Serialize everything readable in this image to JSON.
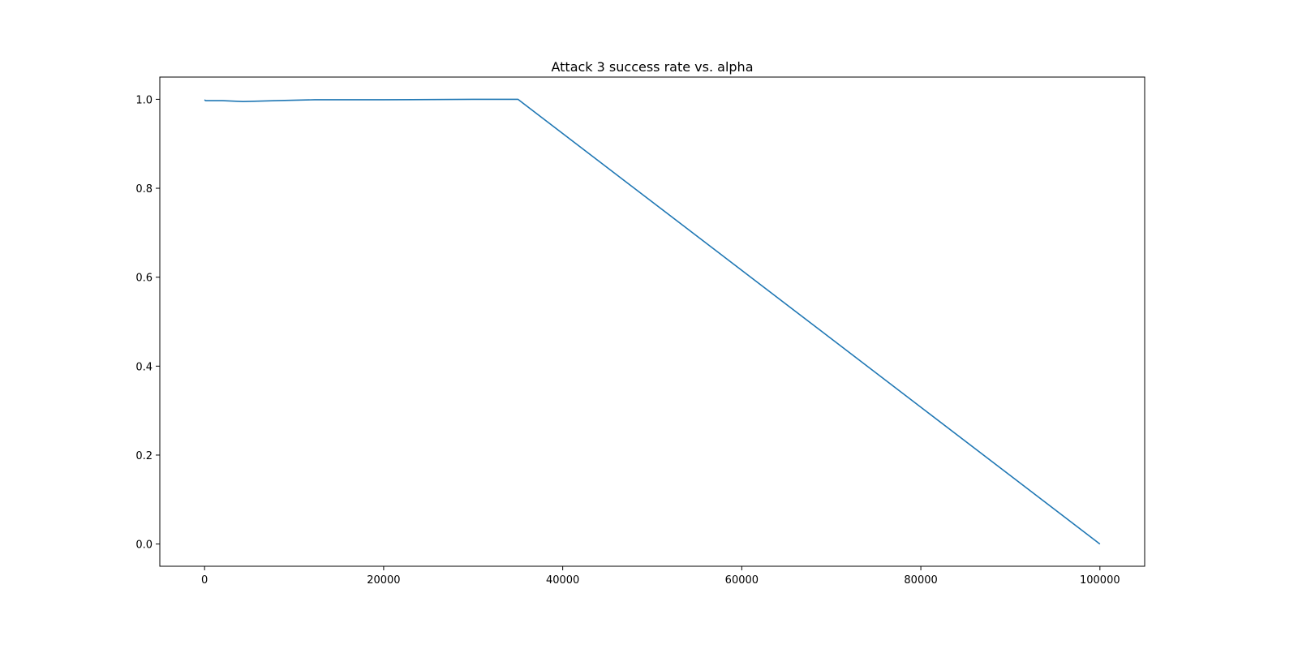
{
  "chart_data": {
    "type": "line",
    "title": "Attack 3 success rate vs. alpha",
    "xlabel": "",
    "ylabel": "",
    "xlim": [
      -5000,
      105000
    ],
    "ylim": [
      -0.05,
      1.05
    ],
    "grid": false,
    "xticks": [
      0,
      20000,
      40000,
      60000,
      80000,
      100000
    ],
    "yticks": [
      0.0,
      0.2,
      0.4,
      0.6,
      0.8,
      1.0
    ],
    "xtick_labels": [
      "0",
      "20000",
      "40000",
      "60000",
      "80000",
      "100000"
    ],
    "ytick_labels": [
      "0.0",
      "0.2",
      "0.4",
      "0.6",
      "0.8",
      "1.0"
    ],
    "series": [
      {
        "name": "success rate",
        "color": "#1f77b4",
        "x": [
          0,
          100,
          500,
          1000,
          2000,
          4300,
          8000,
          12300,
          20000,
          30000,
          35000,
          100000
        ],
        "y": [
          0.999,
          0.997,
          0.997,
          0.997,
          0.997,
          0.995,
          0.997,
          0.999,
          0.999,
          1.0,
          1.0,
          0.0
        ]
      }
    ]
  }
}
